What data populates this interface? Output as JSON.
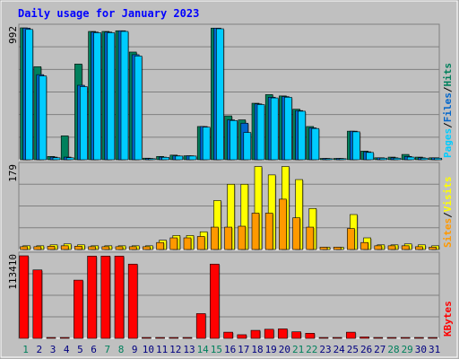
{
  "chart_data": {
    "type": "bar",
    "title": "Daily usage for January 2023",
    "days": [
      "1",
      "2",
      "3",
      "4",
      "5",
      "6",
      "7",
      "8",
      "9",
      "10",
      "11",
      "12",
      "13",
      "14",
      "15",
      "16",
      "17",
      "18",
      "19",
      "20",
      "21",
      "22",
      "23",
      "24",
      "25",
      "26",
      "27",
      "28",
      "29",
      "30",
      "31"
    ],
    "weekend_days": [
      "1",
      "7",
      "8",
      "14",
      "15",
      "21",
      "22",
      "28",
      "29"
    ],
    "panels": [
      {
        "id": "hits-files-pages",
        "max_label": "992",
        "ymax": 992,
        "legend": [
          {
            "text": "Pages",
            "color": "#00ccff"
          },
          {
            "text": "/",
            "color": "#000000"
          },
          {
            "text": "Files",
            "color": "#0066cc"
          },
          {
            "text": "/",
            "color": "#000000"
          },
          {
            "text": "Hits",
            "color": "#00805c"
          }
        ],
        "series": [
          {
            "name": "Hits",
            "color": "#00805c",
            "values": [
              992,
              700,
              25,
              180,
              720,
              965,
              965,
              970,
              810,
              12,
              25,
              35,
              30,
              250,
              990,
              330,
              300,
              425,
              490,
              480,
              380,
              250,
              10,
              10,
              215,
              65,
              15,
              20,
              40,
              20,
              15
            ]
          },
          {
            "name": "Files",
            "color": "#0066cc",
            "values": [
              990,
              640,
              20,
              20,
              560,
              960,
              960,
              970,
              790,
              10,
              20,
              30,
              30,
              250,
              990,
              300,
              275,
              420,
              470,
              475,
              370,
              240,
              10,
              10,
              215,
              60,
              15,
              15,
              25,
              15,
              15
            ]
          },
          {
            "name": "Pages",
            "color": "#00ccff",
            "values": [
              980,
              630,
              15,
              15,
              550,
              955,
              955,
              965,
              780,
              8,
              18,
              28,
              28,
              245,
              985,
              295,
              205,
              415,
              465,
              470,
              365,
              235,
              8,
              8,
              210,
              55,
              12,
              12,
              20,
              12,
              12
            ]
          }
        ]
      },
      {
        "id": "visits-sites",
        "max_label": "179",
        "ymax": 179,
        "legend": [
          {
            "text": "Sites",
            "color": "#ff9900"
          },
          {
            "text": "/",
            "color": "#000000"
          },
          {
            "text": "Visits",
            "color": "#ffff00"
          }
        ],
        "series": [
          {
            "name": "Visits",
            "color": "#ffff00",
            "values": [
              8,
              8,
              10,
              12,
              10,
              8,
              8,
              8,
              8,
              8,
              20,
              30,
              30,
              38,
              105,
              140,
              140,
              178,
              160,
              178,
              150,
              88,
              5,
              5,
              75,
              25,
              10,
              10,
              12,
              10,
              8
            ]
          },
          {
            "name": "Sites",
            "color": "#ff9900",
            "values": [
              6,
              6,
              7,
              8,
              7,
              6,
              6,
              6,
              6,
              6,
              15,
              25,
              25,
              28,
              48,
              48,
              50,
              78,
              78,
              108,
              68,
              48,
              5,
              5,
              45,
              15,
              8,
              8,
              8,
              6,
              5
            ]
          }
        ]
      },
      {
        "id": "kbytes",
        "max_label": "113410",
        "ymax": 113410,
        "legend": [
          {
            "text": "KBytes",
            "color": "#ff0000"
          }
        ],
        "series": [
          {
            "name": "KBytes",
            "color": "#ff0000",
            "values": [
              113410,
              94000,
              1000,
              1000,
              80000,
              113000,
              113000,
              113000,
              102000,
              1000,
              1000,
              1000,
              1000,
              34000,
              102000,
              8500,
              5000,
              11000,
              12500,
              13000,
              9000,
              7000,
              1000,
              1000,
              8500,
              2000,
              1000,
              1000,
              1000,
              1000,
              1000
            ]
          }
        ]
      }
    ],
    "colors": {
      "background": "#c0c0c0",
      "title": "#0000ff",
      "weekday_label": "#000080",
      "weekend_label": "#00805c"
    }
  }
}
